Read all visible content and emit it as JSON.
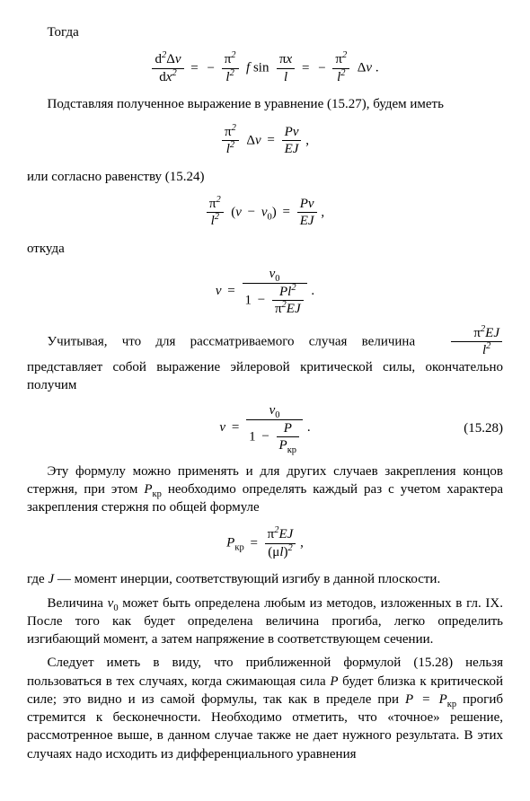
{
  "p_togda": "Тогда",
  "p_podstavlyaya": "Подставляя полученное выражение в уравнение (15.27), будем иметь",
  "p_ili_soglasno": "или согласно равенству (15.24)",
  "p_otkuda": "откуда",
  "p_uchityvaya_1": "Учитывая, что для рассматриваемого случая величина ",
  "p_uchityvaya_2": " представляет собой выражение эйлеровой критической силы, окончательно получим",
  "eqnum_1528": "(15.28)",
  "p_etu_formulu": "Эту формулу можно применять и для других случаев закрепления концов стержня, при этом ",
  "p_etu_formulu_2": " необходимо определять каждый раз с учетом характера закрепления стержня по общей формуле",
  "p_gde_J_1": "где ",
  "p_gde_J_2": " — момент инерции, соответствующий изгибу в данной плоскости.",
  "p_velichina_1": "Величина ",
  "p_velichina_2": " может быть определена любым из методов, изложенных в гл. IX. После того как будет определена величина прогиба, легко определить изгибающий момент, а затем напряжение в соответствующем сечении.",
  "p_sleduet_1": "Следует иметь в виду, что приближенной формулой (15.28) нельзя пользоваться в тех случаях, когда сжимающая сила ",
  "p_sleduet_2": " будет близка к критической силе; это видно и из самой формулы, так как в пределе при ",
  "p_sleduet_3": " прогиб стремится к бесконечности. Необходимо отметить, что «точное» решение, рассмотренное выше, в данном случае также не дает нужного результата. В этих случаях надо исходить из дифференциального уравнения",
  "sym": {
    "pi": "π",
    "P": "P",
    "v": "v",
    "v0": "v",
    "EJ": "EJ",
    "l": "l",
    "f": "f",
    "x": "x",
    "d": "d",
    "Delta": "Δ",
    "J": "J",
    "mu": "μ",
    "kr": "кр",
    "zero": "0",
    "two": "2",
    "eq": " = ",
    "minus": "−",
    "sin": "sin",
    "comma": " ,",
    "dot": " .",
    "lp": "(",
    "rp": ")",
    "one": "1"
  }
}
